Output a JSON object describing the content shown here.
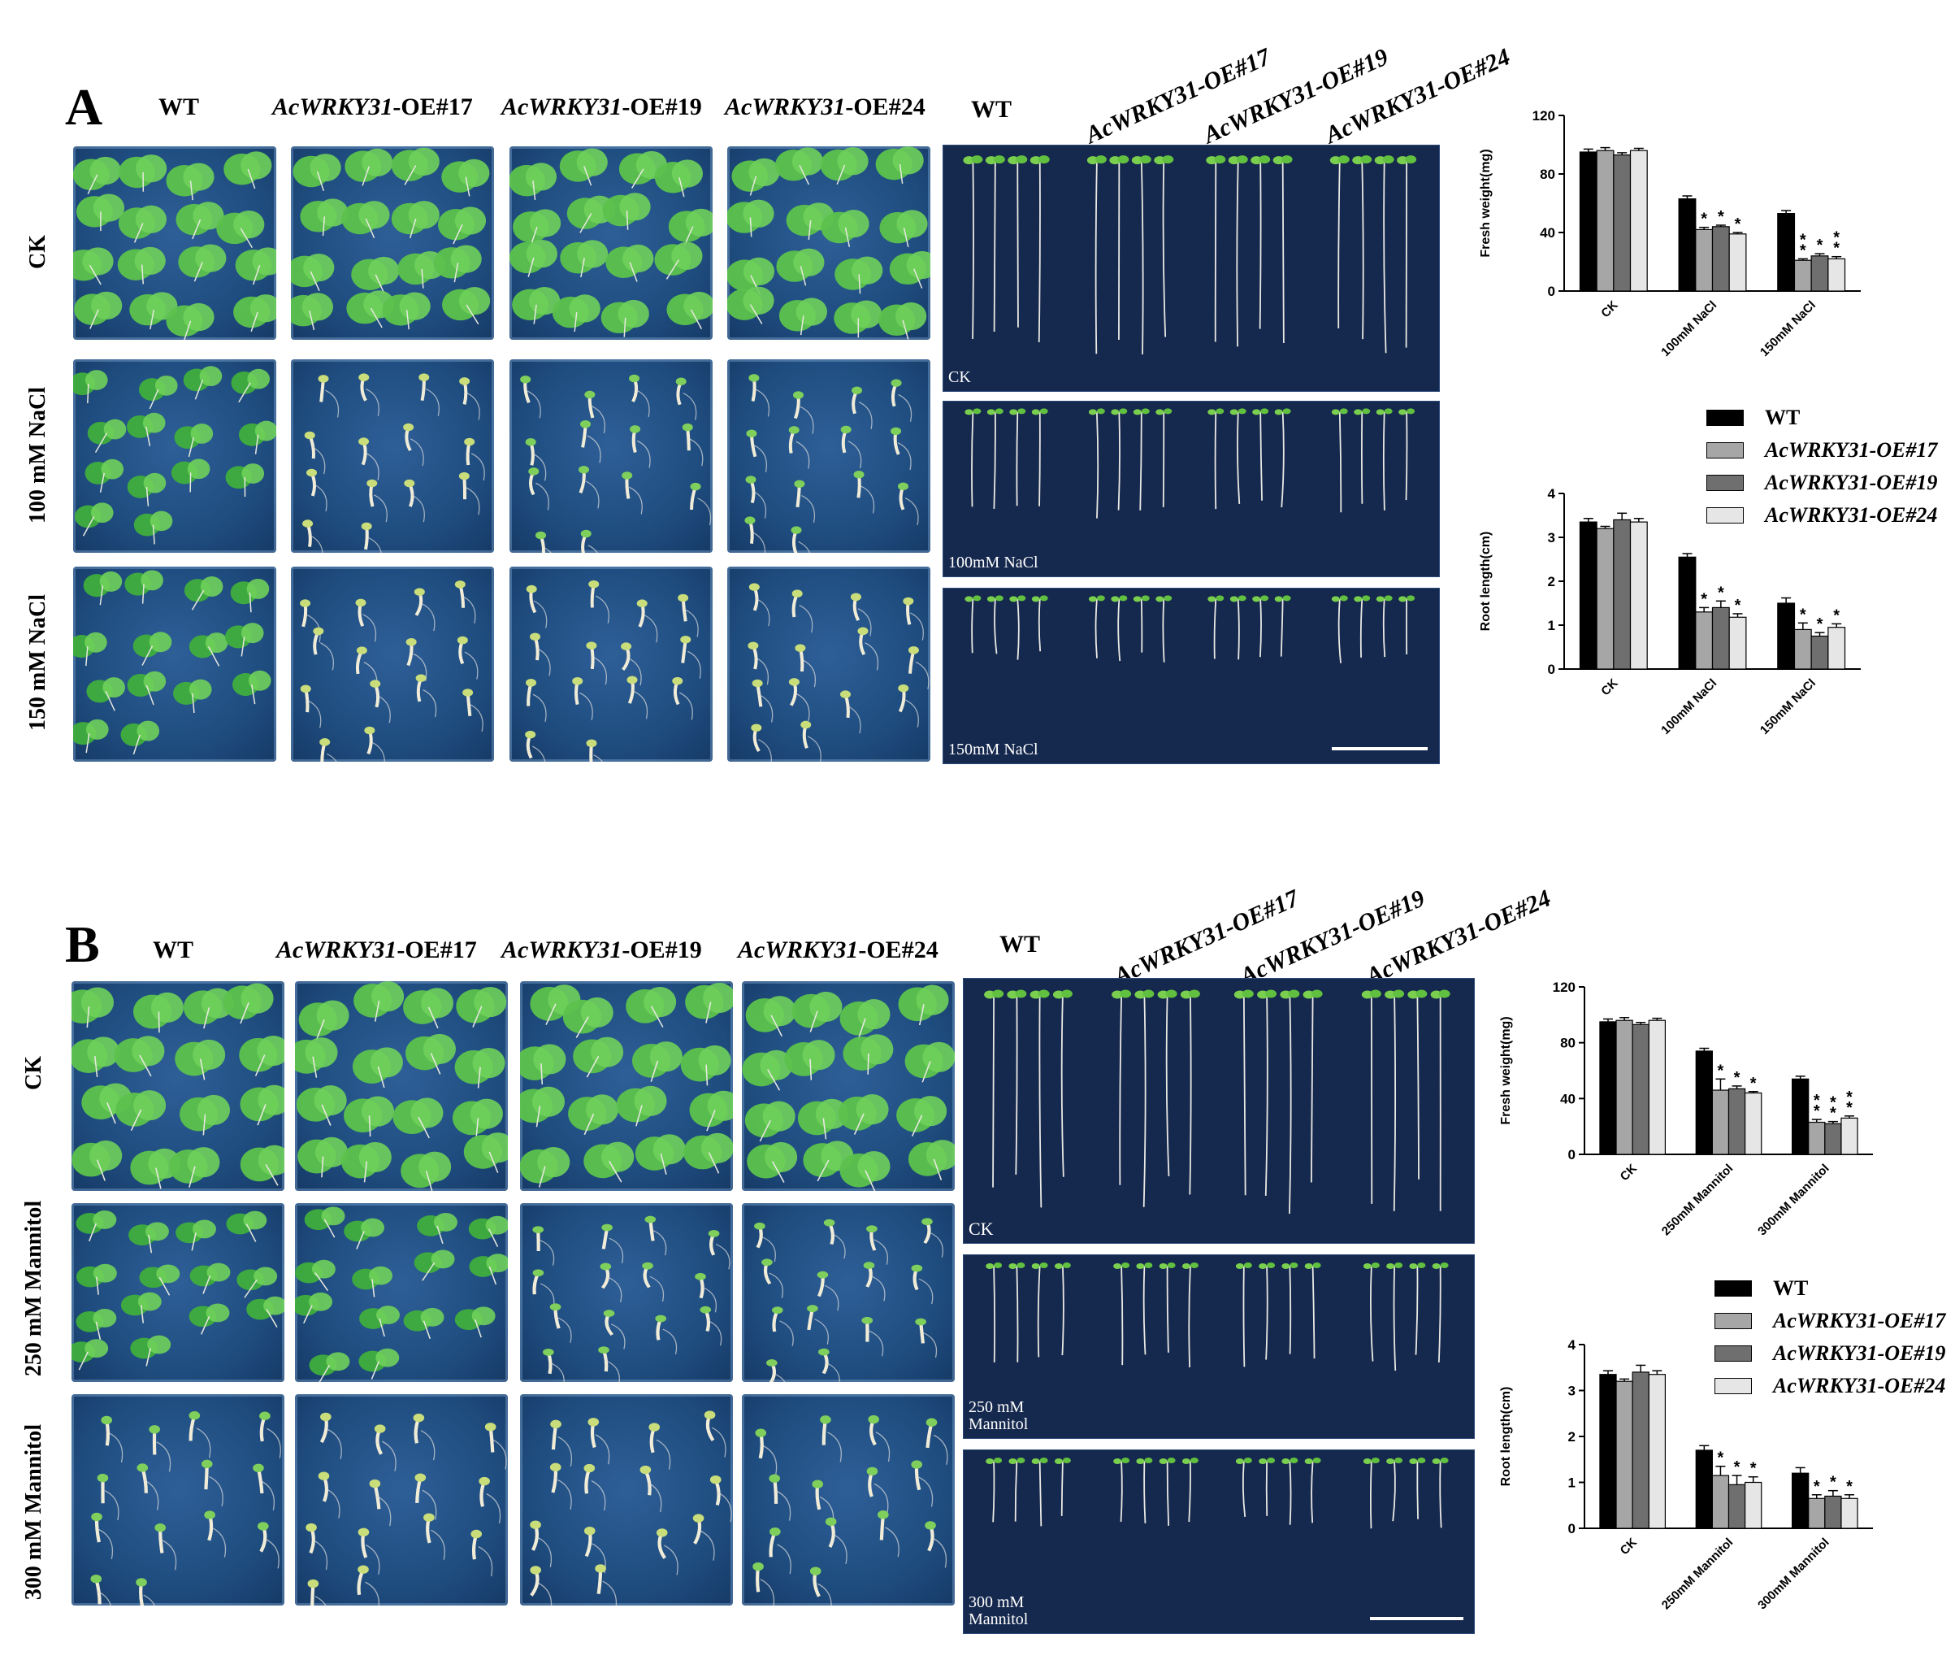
{
  "colors": {
    "wt": "#000000",
    "oe17": "#a6a6a6",
    "oe19": "#6f6f6f",
    "oe24": "#e6e6e6",
    "plate": "#1f4d80",
    "strip": "#15284d"
  },
  "panels": [
    {
      "id": "A",
      "label": "A",
      "photo_headers": [
        {
          "prefix": "",
          "italic": "",
          "text": "WT"
        },
        {
          "prefix": "",
          "italic": "AcWRKY31",
          "text": "-OE#17"
        },
        {
          "prefix": "",
          "italic": "AcWRKY31",
          "text": "-OE#19"
        },
        {
          "prefix": "",
          "italic": "AcWRKY31",
          "text": "-OE#24"
        }
      ],
      "root_headers": [
        "WT",
        "AcWRKY31-OE#17",
        "AcWRKY31-OE#19",
        "AcWRKY31-OE#24"
      ],
      "row_labels": [
        "CK",
        "100 mM NaCl",
        "150 mM NaCl"
      ],
      "strip_labels": [
        "CK",
        "100mM NaCl",
        "150mM NaCl"
      ],
      "legend": [
        "WT",
        "AcWRKY31-OE#17",
        "AcWRKY31-OE#19",
        "AcWRKY31-OE#24"
      ]
    },
    {
      "id": "B",
      "label": "B",
      "photo_headers": [
        {
          "prefix": "",
          "italic": "",
          "text": "WT"
        },
        {
          "prefix": "",
          "italic": "AcWRKY31",
          "text": "-OE#17"
        },
        {
          "prefix": "",
          "italic": "AcWRKY31",
          "text": "-OE#19"
        },
        {
          "prefix": "",
          "italic": "AcWRKY31",
          "text": "-OE#24"
        }
      ],
      "root_headers": [
        "WT",
        "AcWRKY31-OE#17",
        "AcWRKY31-OE#19",
        "AcWRKY31-OE#24"
      ],
      "row_labels": [
        "CK",
        "250 mM Mannitol",
        "300 mM Mannitol"
      ],
      "strip_labels": [
        "CK",
        "250 mM Mannitol",
        "300 mM Mannitol"
      ],
      "legend": [
        "WT",
        "AcWRKY31-OE#17",
        "AcWRKY31-OE#19",
        "AcWRKY31-OE#24"
      ]
    }
  ],
  "chart_data": [
    {
      "id": "A-fresh",
      "type": "bar",
      "ylabel": "Fresh weight(mg)",
      "ylim": [
        0,
        120
      ],
      "yticks": [
        0,
        40,
        80,
        120
      ],
      "categories": [
        "CK",
        "100mM NaCl",
        "150mM NaCl"
      ],
      "series": [
        {
          "name": "WT",
          "values": [
            95,
            63,
            53
          ],
          "err": [
            2,
            2,
            2
          ]
        },
        {
          "name": "AcWRKY31-OE#17",
          "values": [
            96,
            42,
            21
          ],
          "err": [
            2,
            1.5,
            1
          ]
        },
        {
          "name": "AcWRKY31-OE#19",
          "values": [
            93,
            44,
            24
          ],
          "err": [
            1.5,
            1,
            1.5
          ]
        },
        {
          "name": "AcWRKY31-OE#24",
          "values": [
            96,
            39,
            22
          ],
          "err": [
            1.5,
            1,
            1.5
          ]
        }
      ],
      "annotations": [
        [
          "",
          "",
          ""
        ],
        [
          "",
          "*",
          "**"
        ],
        [
          "",
          "*",
          "*"
        ],
        [
          "",
          "*",
          "**"
        ]
      ]
    },
    {
      "id": "A-root",
      "type": "bar",
      "ylabel": "Root length(cm)",
      "ylim": [
        0,
        4
      ],
      "yticks": [
        0,
        1,
        2,
        3,
        4
      ],
      "categories": [
        "CK",
        "100mM NaCl",
        "150mM NaCl"
      ],
      "series": [
        {
          "name": "WT",
          "values": [
            3.35,
            2.55,
            1.5
          ],
          "err": [
            0.08,
            0.08,
            0.12
          ]
        },
        {
          "name": "AcWRKY31-OE#17",
          "values": [
            3.2,
            1.3,
            0.9
          ],
          "err": [
            0.05,
            0.1,
            0.15
          ]
        },
        {
          "name": "AcWRKY31-OE#19",
          "values": [
            3.4,
            1.4,
            0.75
          ],
          "err": [
            0.15,
            0.15,
            0.08
          ]
        },
        {
          "name": "AcWRKY31-OE#24",
          "values": [
            3.35,
            1.18,
            0.95
          ],
          "err": [
            0.08,
            0.08,
            0.08
          ]
        }
      ],
      "annotations": [
        [
          "",
          "",
          ""
        ],
        [
          "",
          "*",
          "*"
        ],
        [
          "",
          "*",
          "*"
        ],
        [
          "",
          "*",
          "*"
        ]
      ]
    },
    {
      "id": "B-fresh",
      "type": "bar",
      "ylabel": "Fresh weight(mg)",
      "ylim": [
        0,
        120
      ],
      "yticks": [
        0,
        40,
        80,
        120
      ],
      "categories": [
        "CK",
        "250mM Mannitol",
        "300mM Mannitol"
      ],
      "series": [
        {
          "name": "WT",
          "values": [
            95,
            74,
            54
          ],
          "err": [
            2,
            2,
            2
          ]
        },
        {
          "name": "AcWRKY31-OE#17",
          "values": [
            96,
            46,
            23
          ],
          "err": [
            2,
            8,
            2
          ]
        },
        {
          "name": "AcWRKY31-OE#19",
          "values": [
            93,
            47,
            22
          ],
          "err": [
            1.5,
            2,
            1.5
          ]
        },
        {
          "name": "AcWRKY31-OE#24",
          "values": [
            96,
            44,
            26
          ],
          "err": [
            1.5,
            1,
            1.5
          ]
        }
      ],
      "annotations": [
        [
          "",
          "",
          ""
        ],
        [
          "",
          "*",
          "**"
        ],
        [
          "",
          "*",
          "**"
        ],
        [
          "",
          "*",
          "**"
        ]
      ]
    },
    {
      "id": "B-root",
      "type": "bar",
      "ylabel": "Root length(cm)",
      "ylim": [
        0,
        4
      ],
      "yticks": [
        0,
        1,
        2,
        3,
        4
      ],
      "categories": [
        "CK",
        "250mM Mannitol",
        "300mM Mannitol"
      ],
      "series": [
        {
          "name": "WT",
          "values": [
            3.35,
            1.7,
            1.2
          ],
          "err": [
            0.08,
            0.1,
            0.12
          ]
        },
        {
          "name": "AcWRKY31-OE#17",
          "values": [
            3.2,
            1.15,
            0.65
          ],
          "err": [
            0.05,
            0.2,
            0.08
          ]
        },
        {
          "name": "AcWRKY31-OE#19",
          "values": [
            3.4,
            0.95,
            0.7
          ],
          "err": [
            0.15,
            0.2,
            0.12
          ]
        },
        {
          "name": "AcWRKY31-OE#24",
          "values": [
            3.35,
            1.0,
            0.65
          ],
          "err": [
            0.08,
            0.12,
            0.08
          ]
        }
      ],
      "annotations": [
        [
          "",
          "",
          ""
        ],
        [
          "",
          "*",
          "*"
        ],
        [
          "",
          "*",
          "*"
        ],
        [
          "",
          "*",
          "*"
        ]
      ]
    }
  ]
}
